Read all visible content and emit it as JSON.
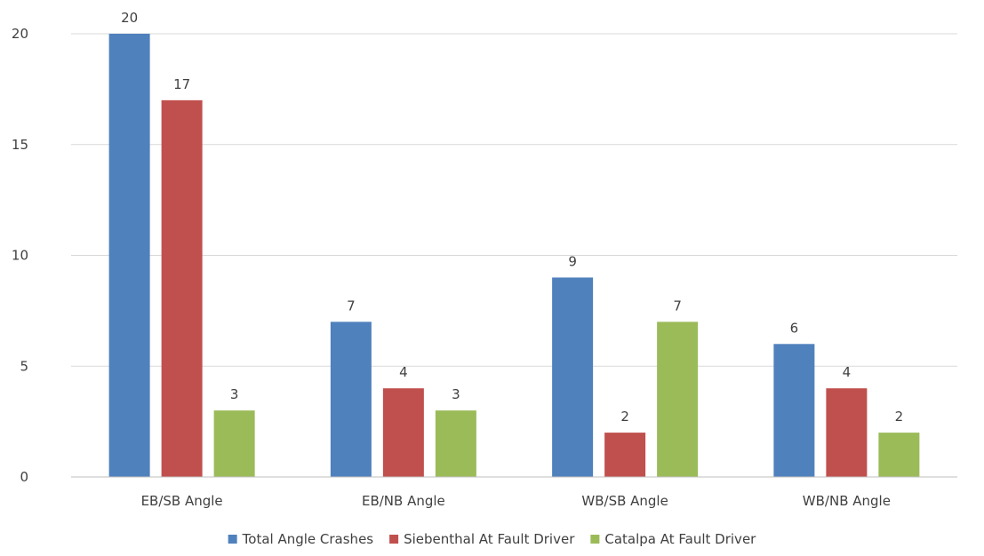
{
  "chart_data": {
    "type": "bar",
    "categories": [
      "EB/SB Angle",
      "EB/NB Angle",
      "WB/SB Angle",
      "WB/NB Angle"
    ],
    "series": [
      {
        "name": "Total Angle Crashes",
        "values": [
          20,
          7,
          9,
          6
        ],
        "color": "#4f81bd"
      },
      {
        "name": "Siebenthal At Fault Driver",
        "values": [
          17,
          4,
          2,
          4
        ],
        "color": "#c0504d"
      },
      {
        "name": "Catalpa At Fault Driver",
        "values": [
          3,
          3,
          7,
          2
        ],
        "color": "#9bbb59"
      }
    ],
    "ylim": [
      0,
      20
    ],
    "yticks": [
      0,
      5,
      10,
      15,
      20
    ],
    "grid": true,
    "data_labels": true,
    "legend_position": "bottom"
  }
}
